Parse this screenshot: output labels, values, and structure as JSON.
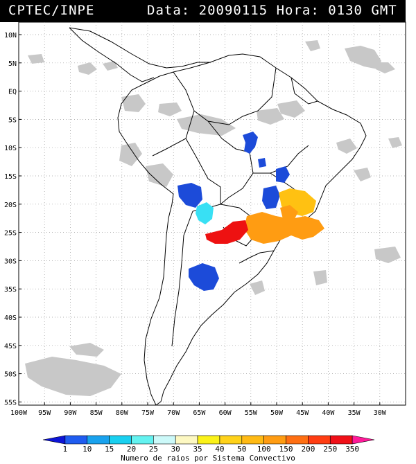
{
  "header": {
    "source": "CPTEC/INPE",
    "datetime": "Data: 20090115 Hora: 0130 GMT"
  },
  "map": {
    "lat_labels": [
      "10N",
      "5N",
      "EQ",
      "5S",
      "10S",
      "15S",
      "20S",
      "25S",
      "30S",
      "35S",
      "40S",
      "45S",
      "50S",
      "55S"
    ],
    "lon_labels": [
      "100W",
      "95W",
      "90W",
      "85W",
      "80W",
      "75W",
      "70W",
      "65W",
      "60W",
      "55W",
      "50W",
      "45W",
      "40W",
      "35W",
      "30W"
    ],
    "grid": true,
    "colors": {
      "land_outline": "#000000",
      "cloud_gray": "#c8c8c8",
      "grid": "#9a9a9a"
    },
    "cell_colors": {
      "dark_blue": "#1c4bd9",
      "cyan": "#38e0f4",
      "orange": "#ff9c12",
      "gold": "#ffc112",
      "red": "#ee1111"
    }
  },
  "legend": {
    "ticks": [
      "1",
      "10",
      "15",
      "20",
      "25",
      "30",
      "35",
      "40",
      "50",
      "100",
      "150",
      "200",
      "250",
      "350"
    ],
    "colors": [
      "#0d14d6",
      "#1f5cf0",
      "#19a2ee",
      "#19d0f0",
      "#63f2f0",
      "#ccf9f9",
      "#fdf8c2",
      "#fbf219",
      "#ffd21a",
      "#ffba14",
      "#ff9c12",
      "#ff6f12",
      "#ff3d12",
      "#f01018",
      "#ff1a99"
    ],
    "title": "Numero de raios por Sistema Convectivo"
  }
}
